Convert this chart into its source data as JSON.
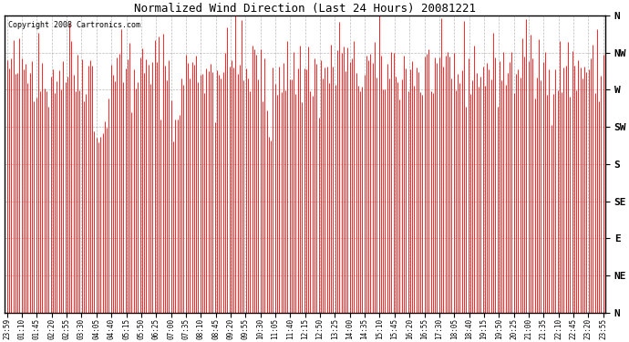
{
  "title": "Normalized Wind Direction (Last 24 Hours) 20081221",
  "copyright_text": "Copyright 2008 Cartronics.com",
  "line_color": "#ff0000",
  "background_color": "#ffffff",
  "grid_color": "#aaaaaa",
  "ytick_labels": [
    "N",
    "NW",
    "W",
    "SW",
    "S",
    "SE",
    "E",
    "NE",
    "N"
  ],
  "ytick_values": [
    360,
    315,
    270,
    225,
    180,
    135,
    90,
    45,
    0
  ],
  "ylim": [
    0,
    360
  ],
  "xtick_labels": [
    "23:59",
    "01:10",
    "01:45",
    "02:20",
    "02:55",
    "03:30",
    "04:05",
    "04:40",
    "05:15",
    "05:50",
    "06:25",
    "07:00",
    "07:35",
    "08:10",
    "08:45",
    "09:20",
    "09:55",
    "10:30",
    "11:05",
    "11:40",
    "12:15",
    "12:50",
    "13:25",
    "14:00",
    "14:35",
    "15:10",
    "15:45",
    "16:20",
    "16:55",
    "17:30",
    "18:05",
    "18:40",
    "19:15",
    "19:50",
    "20:25",
    "21:00",
    "21:35",
    "22:10",
    "22:45",
    "23:20",
    "23:55"
  ],
  "seed": 42,
  "n_points": 288,
  "mean_direction": 295,
  "std_direction": 22
}
